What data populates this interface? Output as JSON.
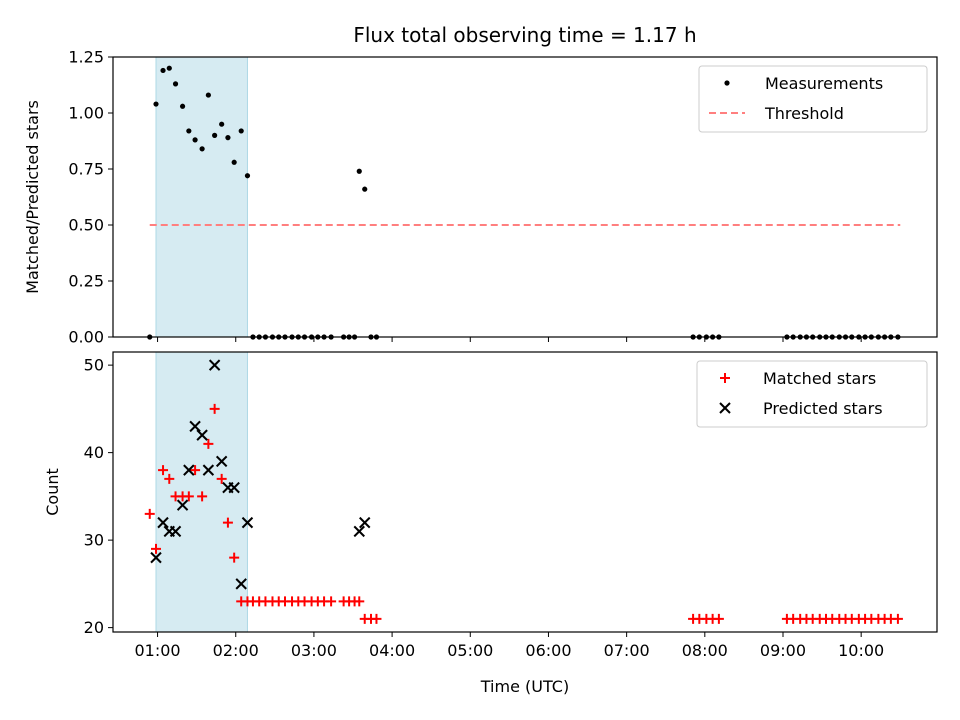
{
  "title": "Flux total observing time = 1.17 h",
  "xlabel": "Time (UTC)",
  "x_ticks": [
    "01:00",
    "02:00",
    "03:00",
    "04:00",
    "05:00",
    "06:00",
    "07:00",
    "08:00",
    "09:00",
    "10:00"
  ],
  "chart_data": [
    {
      "type": "scatter",
      "ylabel": "Matched/Predicted stars",
      "x_unit": "hours UTC",
      "xlim": [
        0.43,
        10.97
      ],
      "ylim": [
        0,
        1.25
      ],
      "y_ticks": [
        "0.00",
        "0.25",
        "0.50",
        "0.75",
        "1.00",
        "1.25"
      ],
      "shaded_span": [
        0.98,
        2.15
      ],
      "legend_position": "upper right",
      "series": [
        {
          "name": "Measurements",
          "color": "#000000",
          "marker": "dot",
          "x": [
            0.9,
            0.98,
            1.07,
            1.15,
            1.23,
            1.32,
            1.4,
            1.48,
            1.57,
            1.65,
            1.73,
            1.82,
            1.9,
            1.98,
            2.07,
            2.15,
            2.22,
            2.3,
            2.38,
            2.47,
            2.55,
            2.63,
            2.72,
            2.8,
            2.88,
            2.97,
            3.05,
            3.13,
            3.22,
            3.38,
            3.45,
            3.52,
            3.58,
            3.65,
            3.73,
            3.8,
            7.85,
            7.93,
            8.02,
            8.1,
            8.18,
            9.05,
            9.13,
            9.22,
            9.3,
            9.38,
            9.47,
            9.55,
            9.63,
            9.72,
            9.8,
            9.88,
            9.97,
            10.05,
            10.13,
            10.22,
            10.3,
            10.38,
            10.47
          ],
          "y": [
            0.0,
            1.04,
            1.19,
            1.2,
            1.13,
            1.03,
            0.92,
            0.88,
            0.84,
            1.08,
            0.9,
            0.95,
            0.89,
            0.78,
            0.92,
            0.72,
            0.0,
            0.0,
            0.0,
            0.0,
            0.0,
            0.0,
            0.0,
            0.0,
            0.0,
            0.0,
            0.0,
            0.0,
            0.0,
            0.0,
            0.0,
            0.0,
            0.74,
            0.66,
            0.0,
            0.0,
            0.0,
            0.0,
            0.0,
            0.0,
            0.0,
            0.0,
            0.0,
            0.0,
            0.0,
            0.0,
            0.0,
            0.0,
            0.0,
            0.0,
            0.0,
            0.0,
            0.0,
            0.0,
            0.0,
            0.0,
            0.0,
            0.0,
            0.0
          ]
        },
        {
          "name": "Threshold",
          "color": "#ff7f7f",
          "style": "dashed",
          "x": [
            0.9,
            10.5
          ],
          "y": [
            0.5,
            0.5
          ]
        }
      ]
    },
    {
      "type": "scatter",
      "ylabel": "Count",
      "x_unit": "hours UTC",
      "xlim": [
        0.43,
        10.97
      ],
      "ylim": [
        19.5,
        51.5
      ],
      "y_ticks": [
        "20",
        "30",
        "40",
        "50"
      ],
      "shaded_span": [
        0.98,
        2.15
      ],
      "legend_position": "upper right",
      "series": [
        {
          "name": "Matched stars",
          "color": "#ff0000",
          "marker": "plus",
          "x": [
            0.9,
            0.98,
            1.07,
            1.15,
            1.23,
            1.32,
            1.4,
            1.48,
            1.57,
            1.65,
            1.73,
            1.82,
            1.9,
            1.98,
            2.07,
            2.15,
            2.22,
            2.3,
            2.38,
            2.47,
            2.55,
            2.63,
            2.72,
            2.8,
            2.88,
            2.97,
            3.05,
            3.13,
            3.22,
            3.38,
            3.45,
            3.52,
            3.58,
            3.65,
            3.73,
            3.8,
            7.85,
            7.93,
            8.02,
            8.1,
            8.18,
            9.05,
            9.13,
            9.22,
            9.3,
            9.38,
            9.47,
            9.55,
            9.63,
            9.72,
            9.8,
            9.88,
            9.97,
            10.05,
            10.13,
            10.22,
            10.3,
            10.38,
            10.47
          ],
          "y": [
            33,
            29,
            38,
            37,
            35,
            35,
            35,
            38,
            35,
            41,
            45,
            37,
            32,
            28,
            23,
            23,
            23,
            23,
            23,
            23,
            23,
            23,
            23,
            23,
            23,
            23,
            23,
            23,
            23,
            23,
            23,
            23,
            23,
            21,
            21,
            21,
            21,
            21,
            21,
            21,
            21,
            21,
            21,
            21,
            21,
            21,
            21,
            21,
            21,
            21,
            21,
            21,
            21,
            21,
            21,
            21,
            21,
            21,
            21
          ]
        },
        {
          "name": "Predicted stars",
          "color": "#000000",
          "marker": "x",
          "x": [
            0.98,
            1.07,
            1.15,
            1.23,
            1.32,
            1.4,
            1.48,
            1.57,
            1.65,
            1.73,
            1.82,
            1.9,
            1.98,
            2.07,
            2.15,
            3.58,
            3.65
          ],
          "y": [
            28,
            32,
            31,
            31,
            34,
            38,
            43,
            42,
            38,
            50,
            39,
            36,
            36,
            25,
            32,
            31,
            32
          ]
        }
      ]
    }
  ]
}
